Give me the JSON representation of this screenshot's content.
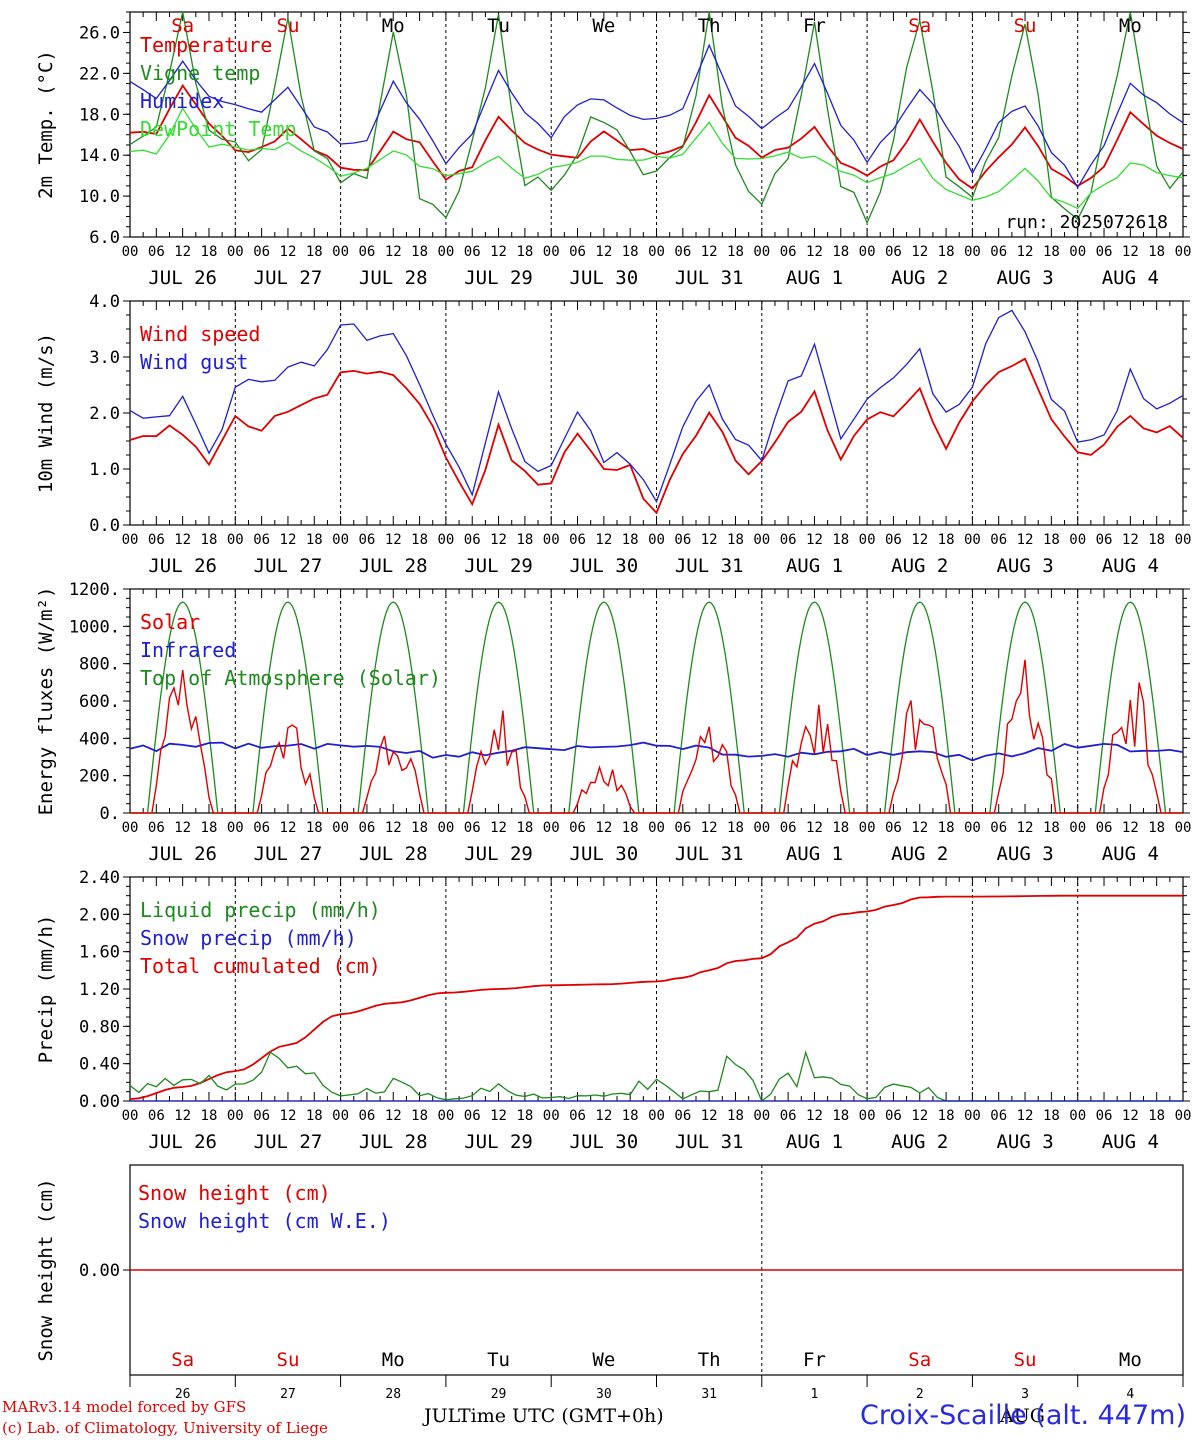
{
  "colors": {
    "red": "#e00000",
    "green": "#1e8a1e",
    "lightgreen": "#33dd33",
    "blue": "#1f1fd0",
    "weekend": "#e00000",
    "weekday": "#000000"
  },
  "days": {
    "weekday_labels": [
      "Sa",
      "Su",
      "Mo",
      "Tu",
      "We",
      "Th",
      "Fr",
      "Sa",
      "Su",
      "Mo"
    ],
    "weekend_flags": [
      true,
      true,
      false,
      false,
      false,
      false,
      false,
      true,
      true,
      false
    ],
    "date_labels": [
      "JUL 26",
      "JUL 27",
      "JUL 28",
      "JUL 29",
      "JUL 30",
      "JUL 31",
      "AUG  1",
      "AUG  2",
      "AUG  3",
      "AUG  4"
    ],
    "day_numbers": [
      "26",
      "27",
      "28",
      "29",
      "30",
      "31",
      "1",
      "2",
      "3",
      "4"
    ],
    "hour_labels": [
      "00",
      "06",
      "12",
      "18"
    ],
    "last_hour_label": "00",
    "month_labels": [
      "JUL",
      "AUG"
    ]
  },
  "footer": {
    "model": "MARv3.14 model forced by GFS",
    "lab": "(c) Lab. of Climatology, University of Liege",
    "xlabel": "Time UTC (GMT+0h)",
    "station": "Croix-Scaille (alt. 447m)"
  },
  "chart_data": [
    {
      "type": "line",
      "ylabel": "2m Temp. (°C)",
      "ylim": [
        6,
        28
      ],
      "yticks": [
        "6.0",
        "10.0",
        "14.0",
        "18.0",
        "22.0",
        "26.0"
      ],
      "annotation": "run: 2025072618",
      "legend": [
        "Temperature",
        "Vigne temp",
        "Humidex",
        "DewPoint Temp"
      ],
      "x_days": [
        0,
        0.25,
        0.5,
        0.75,
        1,
        1.25,
        1.5,
        1.75,
        2,
        2.25,
        2.5,
        2.75,
        3,
        3.25,
        3.5,
        3.75,
        4,
        4.25,
        4.5,
        4.75,
        5,
        5.25,
        5.5,
        5.75,
        6,
        6.25,
        6.5,
        6.75,
        7,
        7.25,
        7.5,
        7.75,
        8,
        8.25,
        8.5,
        8.75,
        9,
        9.25,
        9.5,
        9.75,
        10
      ],
      "series": [
        {
          "name": "Temperature",
          "color": "#e00000",
          "values": [
            16.5,
            16.0,
            21.0,
            17.0,
            14.7,
            14.5,
            16.3,
            14.5,
            13.0,
            12.6,
            16.5,
            15.2,
            11.8,
            13.0,
            18.0,
            15.0,
            13.8,
            14.0,
            16.2,
            14.5,
            14.2,
            15.0,
            19.7,
            15.5,
            14.0,
            14.5,
            16.5,
            13.5,
            12.0,
            13.5,
            17.2,
            13.0,
            10.7,
            14.0,
            16.5,
            12.8,
            10.7,
            13.0,
            18.0,
            16.0,
            14.5
          ]
        },
        {
          "name": "Vigne temp",
          "color": "#1e8a1e",
          "values": [
            16.0,
            16.0,
            28.0,
            15.0,
            14.0,
            15.0,
            27.0,
            14.0,
            11.5,
            13.0,
            26.0,
            11.0,
            8.0,
            14.0,
            27.0,
            12.0,
            11.0,
            14.5,
            18.5,
            14.0,
            13.0,
            14.0,
            27.5,
            13.0,
            10.5,
            14.0,
            27.5,
            12.0,
            8.5,
            14.5,
            28.0,
            11.0,
            9.5,
            15.5,
            28.0,
            11.0,
            8.0,
            15.0,
            28.0,
            12.0,
            11.0
          ]
        },
        {
          "name": "Humidex",
          "color": "#1f1fd0",
          "values": [
            21.5,
            19.5,
            23.0,
            19.5,
            19.0,
            18.5,
            20.5,
            17.0,
            15.0,
            15.5,
            21.0,
            17.5,
            13.0,
            16.0,
            22.0,
            18.0,
            16.0,
            19.0,
            19.5,
            18.0,
            17.5,
            18.5,
            25.0,
            19.0,
            16.5,
            18.5,
            23.0,
            17.0,
            13.5,
            16.5,
            20.5,
            17.0,
            12.5,
            17.0,
            19.0,
            14.5,
            11.0,
            15.0,
            21.0,
            19.0,
            17.0
          ]
        },
        {
          "name": "DewPoint Temp",
          "color": "#33dd33",
          "values": [
            14.5,
            14.0,
            18.5,
            15.0,
            15.0,
            14.5,
            15.0,
            14.0,
            12.0,
            12.5,
            14.5,
            13.0,
            12.0,
            12.5,
            14.0,
            11.5,
            12.5,
            13.5,
            14.0,
            13.5,
            14.0,
            14.0,
            17.0,
            13.5,
            13.5,
            14.0,
            14.0,
            12.5,
            11.5,
            12.0,
            13.5,
            10.5,
            9.5,
            10.5,
            12.5,
            10.0,
            9.0,
            11.0,
            13.0,
            12.5,
            12.0
          ]
        }
      ]
    },
    {
      "type": "line",
      "ylabel": "10m Wind (m/s)",
      "ylim": [
        0,
        4
      ],
      "yticks": [
        "0.0",
        "1.0",
        "2.0",
        "3.0",
        "4.0"
      ],
      "legend": [
        "Wind speed",
        "Wind gust"
      ],
      "x_days": [
        0,
        0.25,
        0.5,
        0.75,
        1,
        1.25,
        1.5,
        1.75,
        2,
        2.25,
        2.5,
        2.75,
        3,
        3.25,
        3.5,
        3.75,
        4,
        4.25,
        4.5,
        4.75,
        5,
        5.25,
        5.5,
        5.75,
        6,
        6.25,
        6.5,
        6.75,
        7,
        7.25,
        7.5,
        7.75,
        8,
        8.25,
        8.5,
        8.75,
        9,
        9.25,
        9.5,
        9.75,
        10
      ],
      "series": [
        {
          "name": "Wind speed",
          "color": "#e00000",
          "values": [
            1.65,
            1.5,
            1.75,
            1.0,
            1.9,
            1.85,
            2.1,
            2.2,
            2.7,
            2.6,
            2.7,
            2.0,
            1.2,
            0.5,
            1.8,
            0.8,
            0.7,
            1.6,
            0.9,
            0.9,
            0.15,
            1.2,
            1.9,
            1.1,
            1.0,
            1.8,
            2.3,
            1.3,
            1.8,
            2.1,
            2.3,
            1.5,
            2.2,
            2.9,
            2.9,
            1.8,
            1.2,
            1.3,
            2.0,
            1.8,
            1.7
          ]
        },
        {
          "name": "Wind gust",
          "color": "#1f1fd0",
          "values": [
            2.1,
            1.9,
            2.3,
            1.2,
            2.4,
            2.5,
            2.8,
            2.9,
            3.6,
            3.3,
            3.5,
            2.4,
            1.5,
            0.7,
            2.5,
            1.0,
            0.9,
            2.1,
            1.1,
            1.2,
            0.3,
            1.6,
            2.5,
            1.5,
            1.3,
            2.4,
            3.1,
            1.7,
            2.1,
            2.8,
            3.0,
            1.9,
            2.5,
            3.8,
            3.6,
            2.3,
            1.5,
            1.6,
            2.7,
            2.1,
            2.2
          ]
        }
      ]
    },
    {
      "type": "line",
      "ylabel": "Energy fluxes (W/m²)",
      "ylim": [
        0,
        1200
      ],
      "yticks": [
        "0.",
        "200.",
        "400.",
        "600.",
        "800.",
        "1000.",
        "1200."
      ],
      "legend": [
        "Solar",
        "Infrared",
        "Top of Atmosphere (Solar)"
      ],
      "toa_peak": 1130,
      "solar_peaks": [
        800,
        520,
        560,
        580,
        300,
        600,
        660,
        750,
        830,
        790
      ],
      "infrared_daily": [
        350,
        360,
        355,
        310,
        350,
        360,
        310,
        330,
        300,
        360,
        330
      ],
      "series_colors": {
        "Solar": "#e00000",
        "Infrared": "#1f1fd0",
        "Top of Atmosphere (Solar)": "#1e8a1e"
      }
    },
    {
      "type": "line",
      "ylabel": "Precip (mm/h)",
      "ylim": [
        0,
        2.4
      ],
      "yticks": [
        "0.00",
        "0.40",
        "0.80",
        "1.20",
        "1.60",
        "2.00",
        "2.40"
      ],
      "legend": [
        "Liquid precip (mm/h)",
        "Snow precip (mm/h)",
        "Total cumulated (cm)"
      ],
      "x_days": [
        0,
        0.5,
        1,
        1.5,
        2,
        2.5,
        3,
        3.5,
        4,
        4.5,
        5,
        5.25,
        5.5,
        5.75,
        6,
        6.25,
        6.5,
        6.75,
        7,
        7.25,
        7.5,
        7.75,
        8,
        9,
        10
      ],
      "series": [
        {
          "name": "Total cumulated (cm)",
          "color": "#e00000",
          "values": [
            0.02,
            0.15,
            0.32,
            0.6,
            0.93,
            1.05,
            1.16,
            1.2,
            1.24,
            1.25,
            1.28,
            1.32,
            1.4,
            1.5,
            1.53,
            1.7,
            1.9,
            2.0,
            2.03,
            2.1,
            2.18,
            2.19,
            2.19,
            2.2,
            2.2
          ]
        },
        {
          "name": "Liquid precip (mm/h)",
          "color": "#1e8a1e",
          "values": [
            0.15,
            0.2,
            0.3,
            0.45,
            0.05,
            0.2,
            0.02,
            0.15,
            0.05,
            0.05,
            0.25,
            0.05,
            0.1,
            0.7,
            0.0,
            0.3,
            0.45,
            0.15,
            0.05,
            0.15,
            0.15,
            0.0,
            0.0,
            0.0,
            0.0
          ]
        },
        {
          "name": "Snow precip (mm/h)",
          "color": "#1f1fd0",
          "values": [
            0,
            0,
            0,
            0,
            0,
            0,
            0,
            0,
            0,
            0,
            0,
            0,
            0,
            0,
            0,
            0,
            0,
            0,
            0,
            0,
            0,
            0,
            0,
            0,
            0
          ]
        }
      ]
    },
    {
      "type": "line",
      "ylabel": "Snow height (cm)",
      "ytick": "0.00",
      "legend": [
        "Snow height (cm)",
        "Snow height (cm W.E.)"
      ],
      "x_days": [
        0,
        10
      ],
      "series": [
        {
          "name": "Snow height (cm)",
          "color": "#e00000",
          "values": [
            0,
            0
          ]
        }
      ]
    }
  ]
}
